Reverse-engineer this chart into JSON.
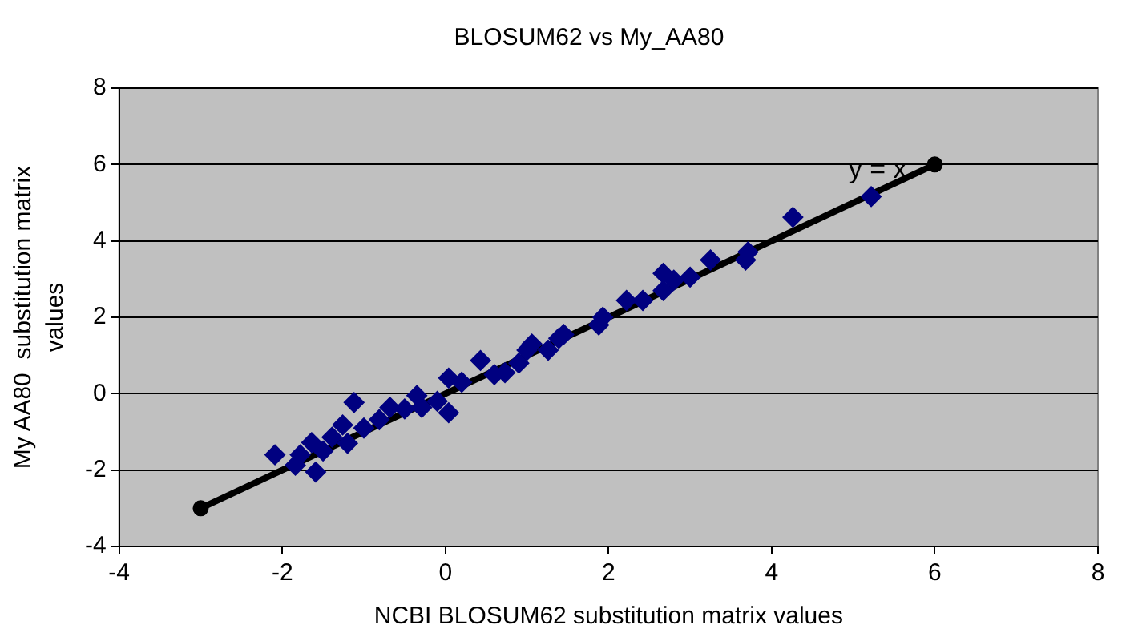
{
  "chart_data": {
    "type": "scatter",
    "title": "BLOSUM62 vs My_AA80",
    "xlabel": "NCBI BLOSUM62 substitution matrix values",
    "ylabel": "My AA80  substitution matrix values",
    "xlim": [
      -4,
      8
    ],
    "xticks": [
      -4,
      -2,
      0,
      2,
      4,
      6,
      8
    ],
    "ylim": [
      -4,
      8
    ],
    "yticks": [
      -4,
      -2,
      0,
      2,
      4,
      6,
      8
    ],
    "grid": "y",
    "legend": false,
    "marker": "diamond",
    "annotations": [
      {
        "text": "y = x",
        "x": 5.3,
        "y": 5.5
      }
    ],
    "series": [
      {
        "color": "#000080",
        "x": [
          5.22,
          4.26,
          3.71,
          3.68,
          3.25,
          3.0,
          2.8,
          2.67,
          2.67,
          2.42,
          2.22,
          1.93,
          1.88,
          1.45,
          1.26,
          1.06,
          1.39,
          1.0,
          0.43,
          0.73,
          0.04,
          0.04,
          -0.35,
          -0.29,
          -0.68,
          -0.81,
          -1.12,
          -1.26,
          -1.39,
          -1.64,
          -1.78,
          -1.59,
          -2.09,
          -1.84,
          0.6,
          0.2,
          -0.5,
          -1.0,
          -1.5,
          -1.2,
          0.9,
          -0.1
        ],
        "values": [
          5.16,
          4.62,
          3.71,
          3.5,
          3.5,
          3.05,
          2.97,
          3.15,
          2.7,
          2.44,
          2.44,
          2.0,
          1.8,
          1.55,
          1.14,
          1.3,
          1.45,
          1.14,
          0.87,
          0.55,
          0.41,
          -0.5,
          -0.05,
          -0.36,
          -0.36,
          -0.68,
          -0.23,
          -0.82,
          -1.14,
          -1.28,
          -1.6,
          -2.05,
          -1.6,
          -1.87,
          0.5,
          0.3,
          -0.4,
          -0.9,
          -1.5,
          -1.3,
          0.8,
          -0.2
        ]
      },
      {
        "type": "line",
        "color": "#000000",
        "marker": "circle",
        "x": [
          -3,
          6
        ],
        "values": [
          -3,
          6
        ]
      }
    ]
  }
}
